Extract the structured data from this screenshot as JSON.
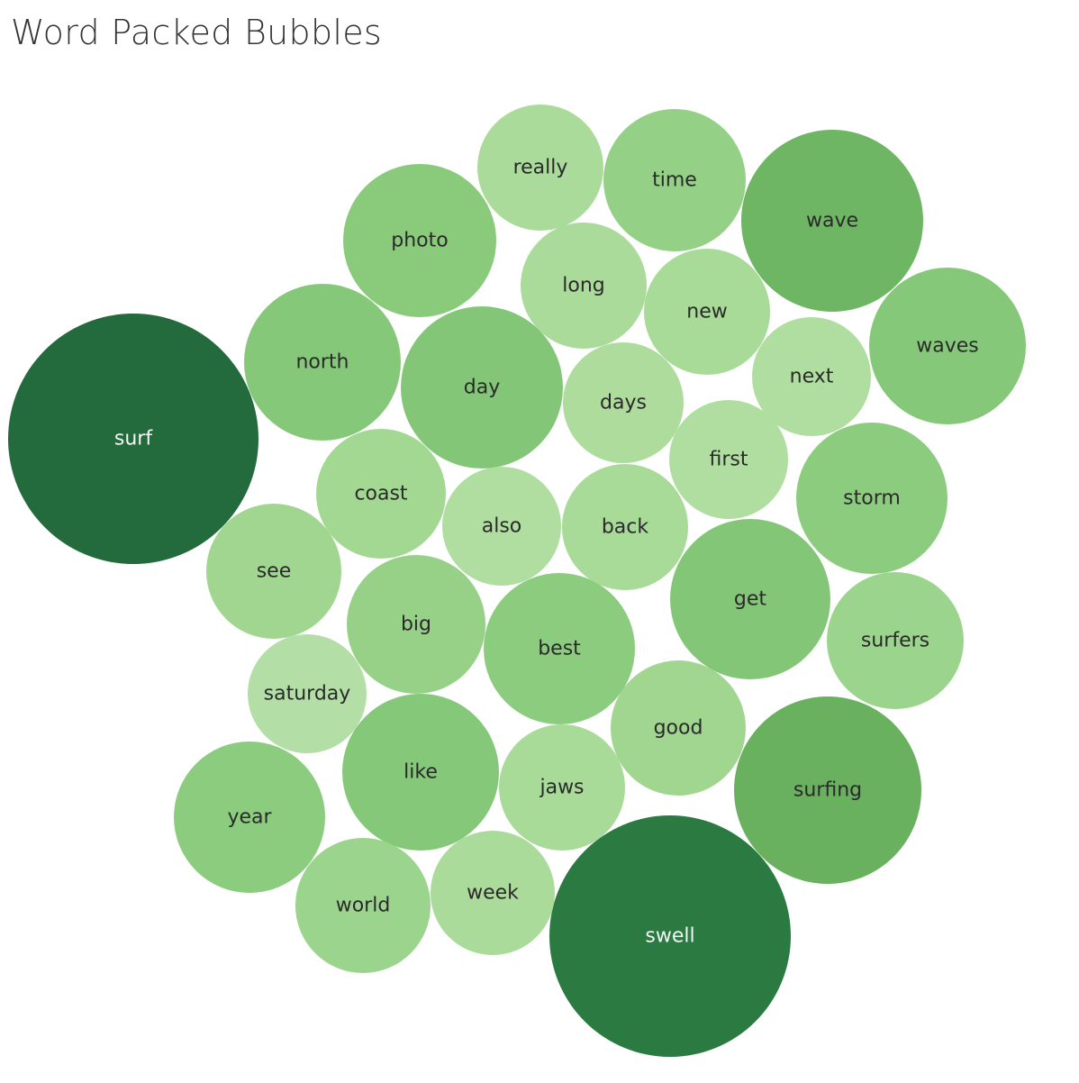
{
  "chart_data": {
    "type": "packed-bubble",
    "title": "Word Packed Bubbles",
    "color_scale": [
      "#b3dfa7",
      "#236a3c"
    ],
    "items": [
      {
        "label": "surf",
        "value": 100,
        "color": "#236a3c"
      },
      {
        "label": "swell",
        "value": 92,
        "color": "#2a7a42"
      },
      {
        "label": "surfing",
        "value": 56,
        "color": "#69b15f"
      },
      {
        "label": "wave",
        "value": 52,
        "color": "#6fb664"
      },
      {
        "label": "day",
        "value": 42,
        "color": "#84c677"
      },
      {
        "label": "get",
        "value": 41,
        "color": "#84c677"
      },
      {
        "label": "like",
        "value": 39,
        "color": "#86c879"
      },
      {
        "label": "north",
        "value": 39,
        "color": "#86c879"
      },
      {
        "label": "waves",
        "value": 39,
        "color": "#86c879"
      },
      {
        "label": "photo",
        "value": 37,
        "color": "#89ca7b"
      },
      {
        "label": "storm",
        "value": 36,
        "color": "#8ccc7e"
      },
      {
        "label": "year",
        "value": 36,
        "color": "#8ccc7e"
      },
      {
        "label": "best",
        "value": 36,
        "color": "#8ccc7e"
      },
      {
        "label": "time",
        "value": 32,
        "color": "#94d085"
      },
      {
        "label": "big",
        "value": 30,
        "color": "#97d188"
      },
      {
        "label": "surfers",
        "value": 30,
        "color": "#9bd48c"
      },
      {
        "label": "world",
        "value": 28,
        "color": "#9bd48c"
      },
      {
        "label": "good",
        "value": 28,
        "color": "#a0d690"
      },
      {
        "label": "see",
        "value": 28,
        "color": "#a0d690"
      },
      {
        "label": "coast",
        "value": 26,
        "color": "#a3d893"
      },
      {
        "label": "new",
        "value": 25,
        "color": "#a8da98"
      },
      {
        "label": "jaws",
        "value": 25,
        "color": "#a8da98"
      },
      {
        "label": "back",
        "value": 25,
        "color": "#a8da98"
      },
      {
        "label": "long",
        "value": 24,
        "color": "#aadb9a"
      },
      {
        "label": "really",
        "value": 24,
        "color": "#aadb9a"
      },
      {
        "label": "week",
        "value": 24,
        "color": "#aadb9a"
      },
      {
        "label": "days",
        "value": 23,
        "color": "#addc9d"
      },
      {
        "label": "also",
        "value": 22,
        "color": "#b0dea0"
      },
      {
        "label": "first",
        "value": 22,
        "color": "#b0dea0"
      },
      {
        "label": "next",
        "value": 22,
        "color": "#b0dea0"
      },
      {
        "label": "saturday",
        "value": 22,
        "color": "#b3dfa7"
      }
    ]
  }
}
